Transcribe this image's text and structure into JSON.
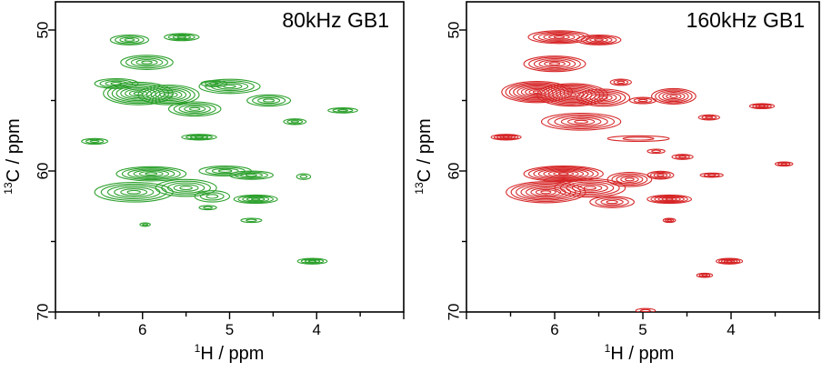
{
  "chart_data": [
    {
      "type": "contour",
      "title": "80kHz GB1",
      "xlabel_sup": "1",
      "xlabel_main": "H / ppm",
      "ylabel_sup": "13",
      "ylabel_main": "C / ppm",
      "xlim": [
        7.0,
        3.0
      ],
      "ylim": [
        70,
        48
      ],
      "xticks": [
        "6",
        "5",
        "4"
      ],
      "yticks": [
        "50",
        "60",
        "70"
      ],
      "color": "#2ca02c",
      "peaks": [
        {
          "x": 6.15,
          "y": 50.7,
          "sx": 0.22,
          "sy": 0.35,
          "levels": 4
        },
        {
          "x": 5.55,
          "y": 50.5,
          "sx": 0.2,
          "sy": 0.25,
          "levels": 4
        },
        {
          "x": 5.95,
          "y": 52.3,
          "sx": 0.3,
          "sy": 0.5,
          "levels": 5
        },
        {
          "x": 6.3,
          "y": 53.8,
          "sx": 0.25,
          "sy": 0.35,
          "levels": 4
        },
        {
          "x": 6.05,
          "y": 54.5,
          "sx": 0.4,
          "sy": 0.8,
          "levels": 8
        },
        {
          "x": 5.7,
          "y": 54.6,
          "sx": 0.35,
          "sy": 0.7,
          "levels": 7
        },
        {
          "x": 5.4,
          "y": 55.6,
          "sx": 0.3,
          "sy": 0.5,
          "levels": 5
        },
        {
          "x": 5.0,
          "y": 54.0,
          "sx": 0.35,
          "sy": 0.5,
          "levels": 5
        },
        {
          "x": 4.55,
          "y": 55.0,
          "sx": 0.25,
          "sy": 0.4,
          "levels": 4
        },
        {
          "x": 5.18,
          "y": 53.8,
          "sx": 0.15,
          "sy": 0.22,
          "levels": 3
        },
        {
          "x": 4.25,
          "y": 56.5,
          "sx": 0.13,
          "sy": 0.2,
          "levels": 3
        },
        {
          "x": 3.7,
          "y": 55.7,
          "sx": 0.17,
          "sy": 0.18,
          "levels": 3
        },
        {
          "x": 6.55,
          "y": 57.9,
          "sx": 0.15,
          "sy": 0.2,
          "levels": 3
        },
        {
          "x": 5.35,
          "y": 57.6,
          "sx": 0.2,
          "sy": 0.2,
          "levels": 4
        },
        {
          "x": 5.9,
          "y": 60.2,
          "sx": 0.4,
          "sy": 0.5,
          "levels": 6
        },
        {
          "x": 6.1,
          "y": 61.5,
          "sx": 0.45,
          "sy": 0.7,
          "levels": 6
        },
        {
          "x": 5.5,
          "y": 61.2,
          "sx": 0.35,
          "sy": 0.6,
          "levels": 5
        },
        {
          "x": 5.05,
          "y": 60.0,
          "sx": 0.3,
          "sy": 0.35,
          "levels": 4
        },
        {
          "x": 4.75,
          "y": 60.3,
          "sx": 0.25,
          "sy": 0.3,
          "levels": 4
        },
        {
          "x": 4.7,
          "y": 62.0,
          "sx": 0.25,
          "sy": 0.3,
          "levels": 5
        },
        {
          "x": 5.2,
          "y": 61.8,
          "sx": 0.2,
          "sy": 0.4,
          "levels": 3
        },
        {
          "x": 4.15,
          "y": 60.4,
          "sx": 0.08,
          "sy": 0.2,
          "levels": 2
        },
        {
          "x": 4.75,
          "y": 63.5,
          "sx": 0.12,
          "sy": 0.15,
          "levels": 2
        },
        {
          "x": 5.25,
          "y": 62.6,
          "sx": 0.1,
          "sy": 0.15,
          "levels": 2
        },
        {
          "x": 5.97,
          "y": 63.8,
          "sx": 0.06,
          "sy": 0.12,
          "levels": 2
        },
        {
          "x": 4.05,
          "y": 66.4,
          "sx": 0.17,
          "sy": 0.2,
          "levels": 4
        }
      ]
    },
    {
      "type": "contour",
      "title": "160kHz GB1",
      "xlabel_sup": "1",
      "xlabel_main": "H / ppm",
      "ylabel_sup": "13",
      "ylabel_main": "C / ppm",
      "xlim": [
        7.0,
        3.0
      ],
      "ylim": [
        70,
        48
      ],
      "xticks": [
        "6",
        "5",
        "4"
      ],
      "yticks": [
        "50",
        "60",
        "70"
      ],
      "color": "#d62728",
      "peaks": [
        {
          "x": 5.95,
          "y": 50.5,
          "sx": 0.35,
          "sy": 0.45,
          "levels": 6
        },
        {
          "x": 5.5,
          "y": 50.7,
          "sx": 0.25,
          "sy": 0.35,
          "levels": 5
        },
        {
          "x": 6.0,
          "y": 52.4,
          "sx": 0.35,
          "sy": 0.55,
          "levels": 6
        },
        {
          "x": 6.2,
          "y": 54.4,
          "sx": 0.4,
          "sy": 0.75,
          "levels": 9
        },
        {
          "x": 5.8,
          "y": 54.6,
          "sx": 0.4,
          "sy": 0.8,
          "levels": 9
        },
        {
          "x": 5.45,
          "y": 54.8,
          "sx": 0.3,
          "sy": 0.6,
          "levels": 6
        },
        {
          "x": 5.7,
          "y": 56.5,
          "sx": 0.45,
          "sy": 0.6,
          "levels": 6
        },
        {
          "x": 5.25,
          "y": 53.7,
          "sx": 0.12,
          "sy": 0.22,
          "levels": 3
        },
        {
          "x": 5.0,
          "y": 55.0,
          "sx": 0.15,
          "sy": 0.22,
          "levels": 3
        },
        {
          "x": 4.65,
          "y": 54.7,
          "sx": 0.25,
          "sy": 0.55,
          "levels": 6
        },
        {
          "x": 4.25,
          "y": 56.2,
          "sx": 0.12,
          "sy": 0.18,
          "levels": 3
        },
        {
          "x": 3.65,
          "y": 55.4,
          "sx": 0.14,
          "sy": 0.18,
          "levels": 4
        },
        {
          "x": 6.55,
          "y": 57.6,
          "sx": 0.17,
          "sy": 0.2,
          "levels": 5
        },
        {
          "x": 5.05,
          "y": 57.7,
          "sx": 0.35,
          "sy": 0.2,
          "levels": 2
        },
        {
          "x": 5.9,
          "y": 60.2,
          "sx": 0.45,
          "sy": 0.55,
          "levels": 8
        },
        {
          "x": 6.1,
          "y": 61.5,
          "sx": 0.45,
          "sy": 0.75,
          "levels": 8
        },
        {
          "x": 5.6,
          "y": 61.2,
          "sx": 0.4,
          "sy": 0.65,
          "levels": 6
        },
        {
          "x": 5.15,
          "y": 60.6,
          "sx": 0.25,
          "sy": 0.5,
          "levels": 5
        },
        {
          "x": 5.35,
          "y": 62.2,
          "sx": 0.25,
          "sy": 0.4,
          "levels": 4
        },
        {
          "x": 4.55,
          "y": 59.0,
          "sx": 0.12,
          "sy": 0.18,
          "levels": 3
        },
        {
          "x": 4.85,
          "y": 58.6,
          "sx": 0.1,
          "sy": 0.15,
          "levels": 2
        },
        {
          "x": 4.8,
          "y": 60.3,
          "sx": 0.15,
          "sy": 0.28,
          "levels": 4
        },
        {
          "x": 4.7,
          "y": 62.0,
          "sx": 0.25,
          "sy": 0.3,
          "levels": 6
        },
        {
          "x": 4.22,
          "y": 60.3,
          "sx": 0.13,
          "sy": 0.15,
          "levels": 3
        },
        {
          "x": 4.7,
          "y": 63.5,
          "sx": 0.07,
          "sy": 0.15,
          "levels": 3
        },
        {
          "x": 3.4,
          "y": 59.5,
          "sx": 0.1,
          "sy": 0.15,
          "levels": 3
        },
        {
          "x": 4.02,
          "y": 66.4,
          "sx": 0.15,
          "sy": 0.2,
          "levels": 5
        },
        {
          "x": 4.3,
          "y": 67.4,
          "sx": 0.09,
          "sy": 0.15,
          "levels": 3
        },
        {
          "x": 4.97,
          "y": 69.9,
          "sx": 0.11,
          "sy": 0.15,
          "levels": 2
        }
      ]
    }
  ]
}
